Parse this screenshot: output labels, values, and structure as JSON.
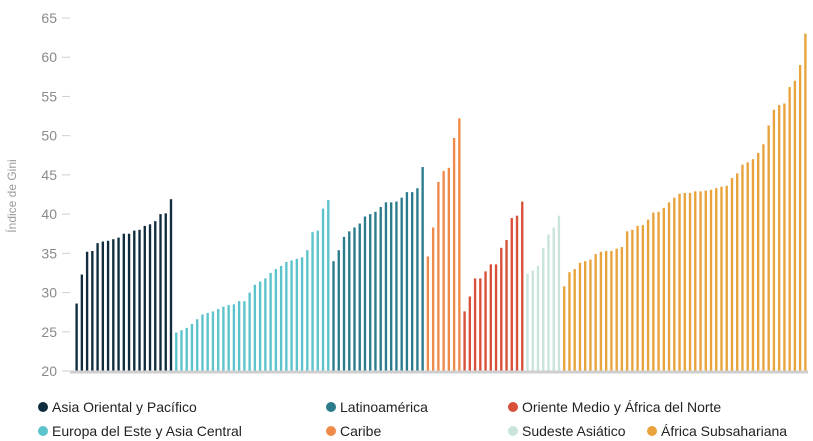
{
  "chart_data": {
    "type": "bar",
    "ylabel": "Índice de Gini",
    "xlabel": "",
    "ylim": [
      20,
      65
    ],
    "yticks": [
      20,
      25,
      30,
      35,
      40,
      45,
      50,
      55,
      60,
      65
    ],
    "grid": false,
    "legend_position": "bottom",
    "series": [
      {
        "name": "Asia Oriental y Pacífico",
        "color": "#0f2d3e",
        "values": [
          28.6,
          32.3,
          35.2,
          35.3,
          36.3,
          36.5,
          36.6,
          36.8,
          37.0,
          37.5,
          37.5,
          37.9,
          38.0,
          38.5,
          38.7,
          39.1,
          40.0,
          40.1,
          41.9
        ]
      },
      {
        "name": "Europa del Este y Asia Central",
        "color": "#5bc3cb",
        "values": [
          24.9,
          25.2,
          25.5,
          26.0,
          26.6,
          27.2,
          27.4,
          27.6,
          27.9,
          28.2,
          28.4,
          28.5,
          28.9,
          28.9,
          30.0,
          31.0,
          31.4,
          31.8,
          32.5,
          33.0,
          33.4,
          33.9,
          34.1,
          34.3,
          34.5,
          35.4,
          37.7,
          37.9,
          40.7,
          41.8
        ]
      },
      {
        "name": "Latinoamérica",
        "color": "#2a7b8c",
        "values": [
          34.0,
          35.4,
          37.1,
          37.8,
          38.3,
          38.8,
          39.7,
          40.0,
          40.3,
          40.9,
          41.5,
          41.5,
          41.6,
          42.1,
          42.8,
          42.8,
          43.3,
          46.0
        ]
      },
      {
        "name": "Caribe",
        "color": "#ee8a4a",
        "values": [
          34.6,
          38.3,
          44.1,
          45.5,
          45.9,
          49.7,
          52.2
        ]
      },
      {
        "name": "Oriente Medio y África del Norte",
        "color": "#d9503a",
        "values": [
          27.6,
          29.5,
          31.8,
          31.8,
          32.7,
          33.6,
          33.6,
          35.7,
          36.7,
          39.5,
          39.8,
          41.6
        ]
      },
      {
        "name": "Sudeste Asiático",
        "color": "#c8e4dc",
        "values": [
          32.4,
          32.8,
          33.4,
          35.7,
          37.4,
          38.3,
          39.8
        ]
      },
      {
        "name": "África Subsahariana",
        "color": "#e8a33c",
        "values": [
          30.8,
          32.6,
          33.0,
          33.8,
          34.0,
          34.2,
          34.9,
          35.2,
          35.3,
          35.3,
          35.6,
          35.8,
          37.8,
          38.0,
          38.5,
          38.6,
          39.3,
          40.2,
          40.3,
          40.8,
          41.5,
          42.1,
          42.6,
          42.7,
          42.7,
          42.9,
          42.9,
          43.0,
          43.1,
          43.3,
          43.5,
          43.6,
          44.6,
          45.2,
          46.3,
          46.6,
          47.0,
          47.8,
          48.9,
          51.3,
          53.3,
          53.9,
          54.1,
          56.2,
          57.0,
          59.0,
          63.0
        ]
      }
    ]
  },
  "legend": [
    {
      "label": "Asia Oriental y Pacífico",
      "color": "#0f2d3e"
    },
    {
      "label": "Latinoamérica",
      "color": "#2a7b8c"
    },
    {
      "label": "Oriente Medio y África del Norte",
      "color": "#d9503a"
    },
    {
      "label": "Europa del Este y Asia Central",
      "color": "#5bc3cb"
    },
    {
      "label": "Caribe",
      "color": "#ee8a4a"
    },
    {
      "label": "Sudeste Asiático",
      "color": "#c8e4dc"
    },
    {
      "label": "África Subsahariana",
      "color": "#e8a33c"
    }
  ]
}
